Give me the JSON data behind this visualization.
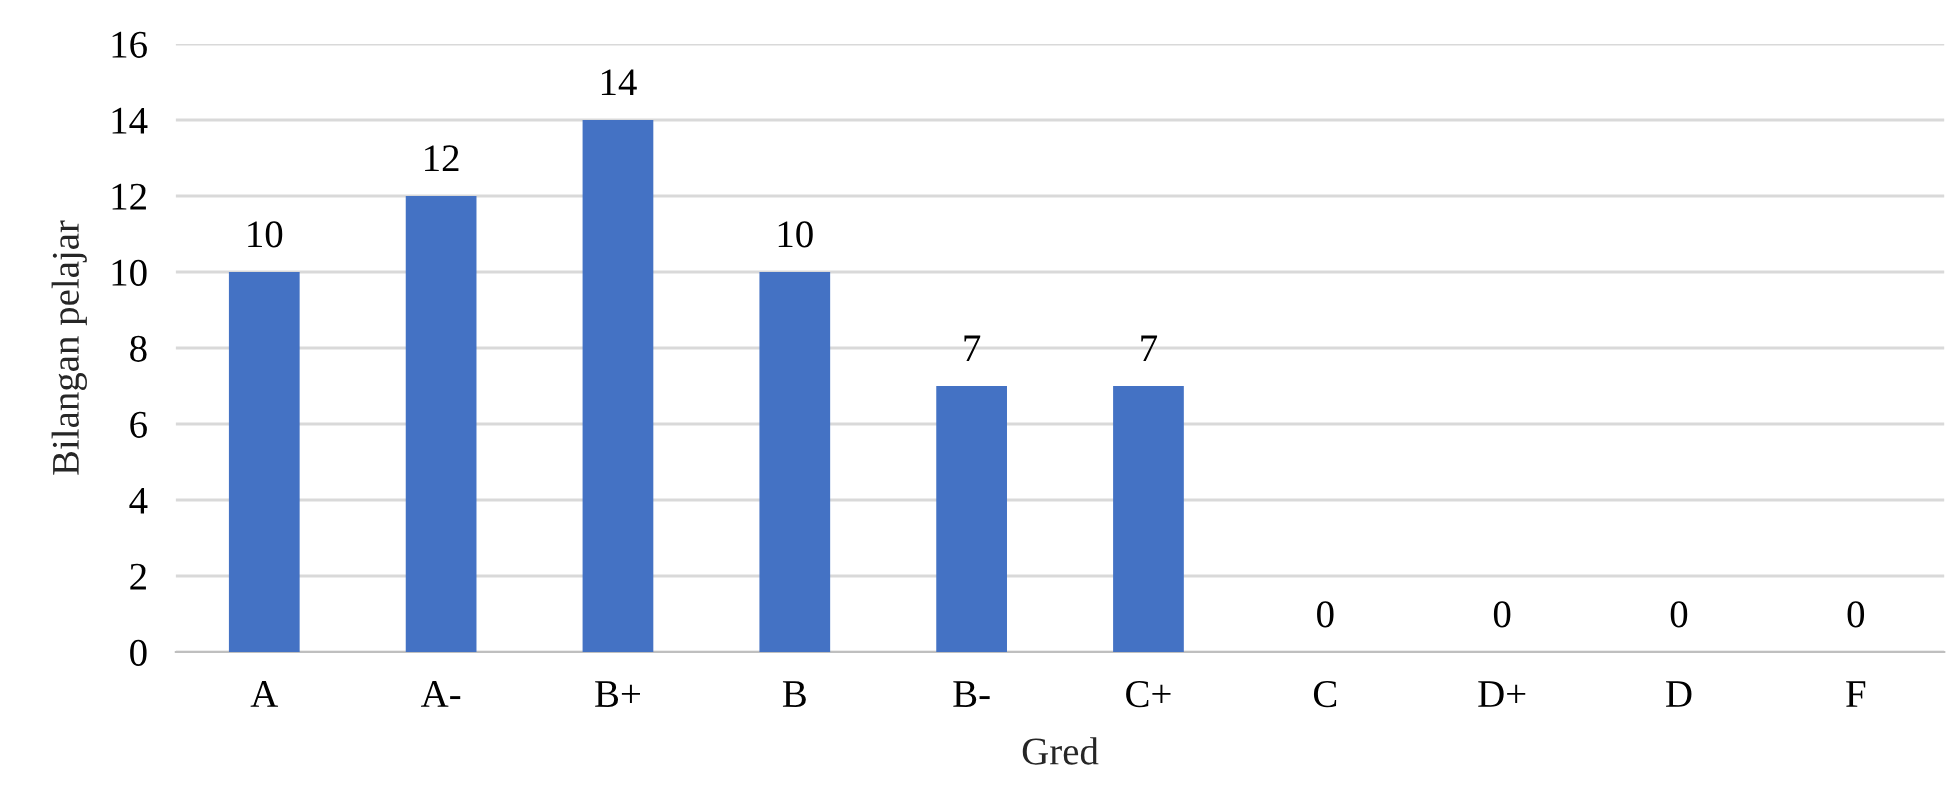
{
  "chart_data": {
    "type": "bar",
    "xlabel": "Gred",
    "ylabel": "Bilangan pelajar",
    "categories": [
      "A",
      "A-",
      "B+",
      "B",
      "B-",
      "C+",
      "C",
      "D+",
      "D",
      "F"
    ],
    "values": [
      10,
      12,
      14,
      10,
      7,
      7,
      0,
      0,
      0,
      0
    ],
    "color": "#4472c4",
    "ylim": [
      0,
      16
    ],
    "yticks": [
      0,
      2,
      4,
      6,
      8,
      10,
      12,
      14,
      16
    ],
    "grid": "y",
    "data_labels": true
  }
}
